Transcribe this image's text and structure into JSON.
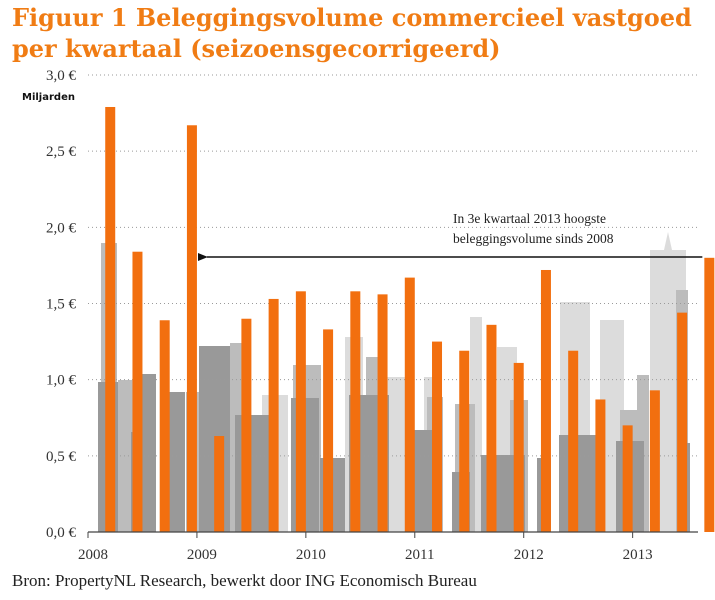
{
  "header": {
    "title_line1": "Figuur 1 Beleggingsvolume commercieel vastgoed",
    "title_line2": "per kwartaal (seizoensgecorrigeerd)"
  },
  "footer": {
    "source": "Bron: PropertyNL Research, bewerkt door ING Economisch Bureau"
  },
  "chart_data": {
    "type": "bar",
    "title": "Figuur 1 Beleggingsvolume commercieel vastgoed per kwartaal (seizoensgecorrigeerd)",
    "unit_label": "Miljarden",
    "ylim": [
      0,
      3.0
    ],
    "yticks": [
      "0,0 €",
      "0,5 €",
      "1,0 €",
      "1,5 €",
      "2,0 €",
      "2,5 €",
      "3,0 €"
    ],
    "xticks": [
      "2008",
      "2009",
      "2010",
      "2011",
      "2012",
      "2013"
    ],
    "categories": [
      "2008 Q1",
      "2008 Q2",
      "2008 Q3",
      "2008 Q4",
      "2009 Q1",
      "2009 Q2",
      "2009 Q3",
      "2009 Q4",
      "2010 Q1",
      "2010 Q2",
      "2010 Q3",
      "2010 Q4",
      "2011 Q1",
      "2011 Q2",
      "2011 Q3",
      "2011 Q4",
      "2012 Q1",
      "2012 Q2",
      "2012 Q3",
      "2012 Q4",
      "2013 Q1",
      "2013 Q2",
      "2013 Q3"
    ],
    "series": [
      {
        "name": "Beleggingsvolume",
        "color": "#f26f0f",
        "values": [
          2.79,
          1.84,
          1.39,
          2.67,
          0.63,
          1.4,
          1.53,
          1.58,
          1.33,
          1.58,
          1.56,
          1.67,
          1.25,
          1.19,
          1.36,
          1.11,
          1.72,
          1.19,
          0.87,
          0.7,
          0.93,
          1.44,
          1.8
        ]
      }
    ],
    "annotation": {
      "line1": "In 3e kwartaal 2013 hoogste",
      "line2": "beleggingsvolume sinds 2008",
      "arrow_from": "2013 Q3",
      "arrow_to": "2008 Q4"
    },
    "grid": "horizontal-dotted",
    "background": "city-skyline-silhouette"
  }
}
